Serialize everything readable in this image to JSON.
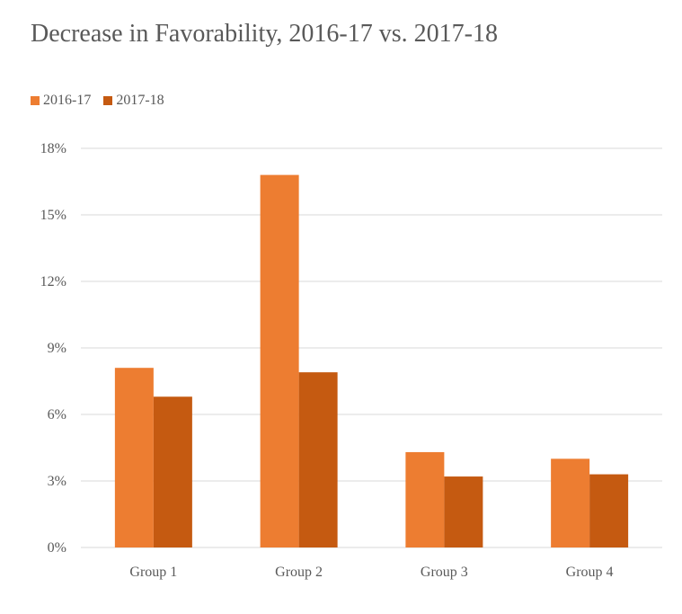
{
  "chart_data": {
    "type": "bar",
    "title": "Decrease in Favorability, 2016-17 vs. 2017-18",
    "categories": [
      "Group 1",
      "Group 2",
      "Group 3",
      "Group 4"
    ],
    "series": [
      {
        "name": "2016-17",
        "color": "#ED7D31",
        "values": [
          8.1,
          16.8,
          4.3,
          4.0
        ]
      },
      {
        "name": "2017-18",
        "color": "#C55A11",
        "values": [
          6.8,
          7.9,
          3.2,
          3.3
        ]
      }
    ],
    "yticks": [
      "0%",
      "3%",
      "6%",
      "9%",
      "12%",
      "15%",
      "18%"
    ],
    "ylim": [
      0,
      18
    ],
    "grid": true,
    "legend_position": "top-left"
  }
}
